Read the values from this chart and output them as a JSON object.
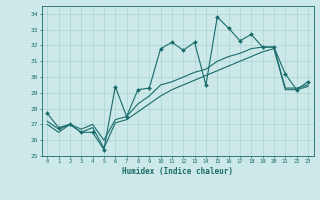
{
  "title": "",
  "xlabel": "Humidex (Indice chaleur)",
  "ylabel": "",
  "xlim": [
    -0.5,
    23.5
  ],
  "ylim": [
    25,
    34.5
  ],
  "xticks": [
    0,
    1,
    2,
    3,
    4,
    5,
    6,
    7,
    8,
    9,
    10,
    11,
    12,
    13,
    14,
    15,
    16,
    17,
    18,
    19,
    20,
    21,
    22,
    23
  ],
  "yticks": [
    25,
    26,
    27,
    28,
    29,
    30,
    31,
    32,
    33,
    34
  ],
  "bg_color": "#cce8e8",
  "grid_color": "#aad4d4",
  "line_color": "#1a6b6b",
  "line1_y": [
    27.7,
    26.8,
    27.0,
    26.5,
    26.5,
    25.4,
    29.4,
    27.5,
    29.2,
    29.3,
    31.8,
    32.2,
    31.7,
    32.2,
    29.5,
    33.8,
    33.1,
    32.3,
    32.7,
    31.9,
    31.9,
    30.2,
    29.2,
    29.7
  ],
  "line2_y": [
    27.0,
    26.5,
    27.0,
    26.7,
    27.0,
    26.0,
    27.3,
    27.5,
    28.3,
    28.8,
    29.5,
    29.7,
    30.0,
    30.3,
    30.5,
    31.0,
    31.3,
    31.5,
    31.8,
    31.9,
    31.9,
    29.3,
    29.3,
    29.5
  ],
  "line3_y": [
    27.2,
    26.7,
    27.0,
    26.5,
    26.8,
    25.5,
    27.1,
    27.3,
    27.8,
    28.3,
    28.8,
    29.2,
    29.5,
    29.8,
    30.1,
    30.4,
    30.7,
    31.0,
    31.3,
    31.6,
    31.8,
    29.2,
    29.2,
    29.4
  ]
}
